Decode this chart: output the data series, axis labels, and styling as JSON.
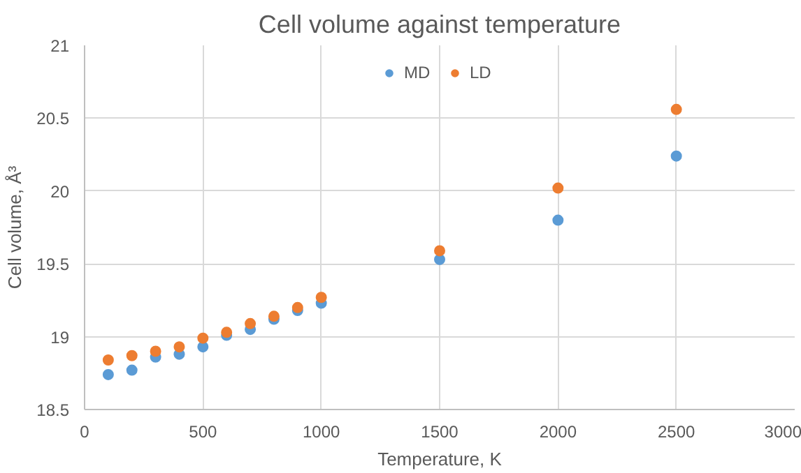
{
  "chart_data": {
    "type": "scatter",
    "title": "Cell volume against temperature",
    "xlabel": "Temperature, K",
    "ylabel": "Cell volume, Å³",
    "x": [
      100,
      200,
      300,
      400,
      500,
      600,
      700,
      800,
      900,
      1000,
      1500,
      2000,
      2500
    ],
    "series": [
      {
        "name": "MD",
        "color": "#5b9bd5",
        "values": [
          18.74,
          18.77,
          18.86,
          18.88,
          18.93,
          19.01,
          19.05,
          19.12,
          19.18,
          19.23,
          19.53,
          19.8,
          20.24
        ]
      },
      {
        "name": "LD",
        "color": "#ed7d31",
        "values": [
          18.84,
          18.87,
          18.9,
          18.93,
          18.99,
          19.03,
          19.09,
          19.14,
          19.2,
          19.27,
          19.59,
          20.02,
          20.56
        ]
      }
    ],
    "xlim": [
      0,
      3000
    ],
    "xticks": [
      0,
      500,
      1000,
      1500,
      2000,
      2500,
      3000
    ],
    "ylim": [
      18.5,
      21
    ],
    "yticks": [
      18.5,
      19,
      19.5,
      20,
      20.5,
      21
    ],
    "grid": true,
    "legend": "top",
    "marker": "circle"
  }
}
